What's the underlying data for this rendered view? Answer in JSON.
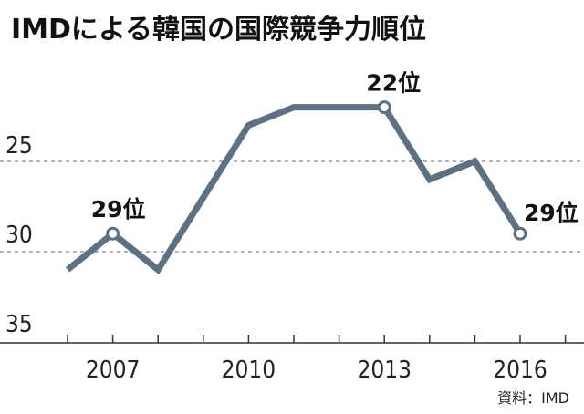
{
  "chart_data": {
    "type": "line",
    "title": "IMDによる韓国の国際競争力順位",
    "x": [
      2006,
      2007,
      2008,
      2009,
      2010,
      2011,
      2012,
      2013,
      2014,
      2015,
      2016
    ],
    "series": [
      {
        "values": [
          31,
          29,
          31,
          27,
          23,
          22,
          22,
          22,
          26,
          25,
          29
        ]
      }
    ],
    "y_tick_labels": [
      "25",
      "30",
      "35"
    ],
    "x_tick_labels": [
      "2007",
      "2010",
      "2013",
      "2016"
    ],
    "ylim": [
      35,
      20
    ],
    "y_inverted": true,
    "grid": "dashed horizontal at 25 and 30",
    "line_color": "#5e7183",
    "annotations": [
      {
        "x": 2007,
        "y": 29,
        "label": "29位"
      },
      {
        "x": 2013,
        "y": 22,
        "label": "22位"
      },
      {
        "x": 2016,
        "y": 29,
        "label": "29位"
      }
    ],
    "source": "資料：IMD"
  }
}
